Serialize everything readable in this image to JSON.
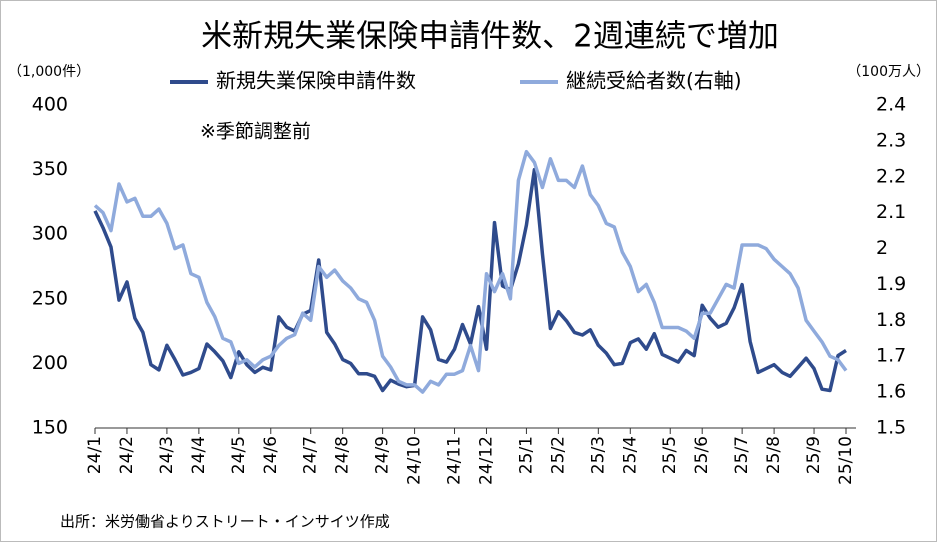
{
  "chart_data": {
    "type": "line",
    "title": "米新規失業保険申請件数、2週連続で増加",
    "y_label": "（1,000件）",
    "y2_label": "（100万人）",
    "annotation": "※季節調整前",
    "source": "出所：米労働省よりストリート・インサイツ作成",
    "categories": [
      "24/1",
      null,
      null,
      null,
      "24/2",
      null,
      null,
      null,
      null,
      "24/3",
      null,
      null,
      null,
      "24/4",
      null,
      null,
      null,
      null,
      "24/5",
      null,
      null,
      null,
      "24/6",
      null,
      null,
      null,
      null,
      "24/7",
      null,
      null,
      null,
      "24/8",
      null,
      null,
      null,
      null,
      "24/9",
      null,
      null,
      null,
      "24/10",
      null,
      null,
      null,
      null,
      "24/11",
      null,
      null,
      null,
      "24/12",
      null,
      null,
      null,
      null,
      "25/1",
      null,
      null,
      null,
      "25/2",
      null,
      null,
      null,
      null,
      "25/3",
      null,
      null,
      null,
      "25/4",
      null,
      null,
      null,
      null,
      "25/5",
      null,
      null,
      null,
      "25/6",
      null,
      null,
      null,
      null,
      "25/7",
      null,
      null,
      null,
      "25/8",
      null,
      null,
      null,
      null,
      "25/9",
      null,
      null,
      null,
      "25/10"
    ],
    "series": [
      {
        "name": "新規失業保険申請件数",
        "color": "#2f4b8c",
        "axis": "y",
        "values": [
          318,
          305,
          290,
          249,
          263,
          235,
          224,
          199,
          195,
          214,
          203,
          191,
          193,
          196,
          215,
          209,
          202,
          189,
          209,
          199,
          193,
          197,
          195,
          236,
          228,
          225,
          238,
          241,
          280,
          224,
          215,
          203,
          200,
          192,
          192,
          190,
          179,
          187,
          184,
          182,
          183,
          236,
          226,
          203,
          201,
          211,
          230,
          215,
          244,
          211,
          309,
          260,
          257,
          277,
          307,
          350,
          285,
          227,
          240,
          233,
          224,
          222,
          226,
          214,
          208,
          199,
          200,
          216,
          219,
          211,
          223,
          207,
          204,
          201,
          210,
          206,
          245,
          235,
          228,
          231,
          243,
          261,
          217,
          193,
          196,
          199,
          193,
          190,
          197,
          204,
          196,
          180,
          179,
          206,
          210
        ]
      },
      {
        "name": "継続受給者数(右軸)",
        "color": "#8faadc",
        "axis": "y2",
        "values": [
          2.12,
          2.1,
          2.05,
          2.18,
          2.13,
          2.14,
          2.09,
          2.09,
          2.11,
          2.07,
          2.0,
          2.01,
          1.93,
          1.92,
          1.85,
          1.81,
          1.75,
          1.74,
          1.68,
          1.69,
          1.67,
          1.69,
          1.7,
          1.73,
          1.75,
          1.76,
          1.82,
          1.8,
          1.95,
          1.92,
          1.94,
          1.91,
          1.89,
          1.86,
          1.85,
          1.8,
          1.7,
          1.67,
          1.63,
          1.62,
          1.62,
          1.6,
          1.63,
          1.62,
          1.65,
          1.65,
          1.66,
          1.73,
          1.66,
          1.93,
          1.88,
          1.93,
          1.86,
          2.19,
          2.27,
          2.24,
          2.17,
          2.25,
          2.19,
          2.19,
          2.17,
          2.23,
          2.15,
          2.12,
          2.07,
          2.06,
          1.99,
          1.95,
          1.88,
          1.9,
          1.85,
          1.78,
          1.78,
          1.78,
          1.77,
          1.75,
          1.82,
          1.82,
          1.86,
          1.9,
          1.89,
          2.01,
          2.01,
          2.01,
          2.0,
          1.97,
          1.95,
          1.93,
          1.89,
          1.8,
          1.77,
          1.74,
          1.7,
          1.69,
          1.66
        ]
      }
    ],
    "ylim": [
      150,
      400
    ],
    "yticks": [
      150,
      200,
      250,
      300,
      350,
      400
    ],
    "y2lim": [
      1.5,
      2.4
    ],
    "y2ticks": [
      1.5,
      1.6,
      1.7,
      1.8,
      1.9,
      2,
      2.1,
      2.2,
      2.3,
      2.4
    ],
    "legend": "top"
  }
}
